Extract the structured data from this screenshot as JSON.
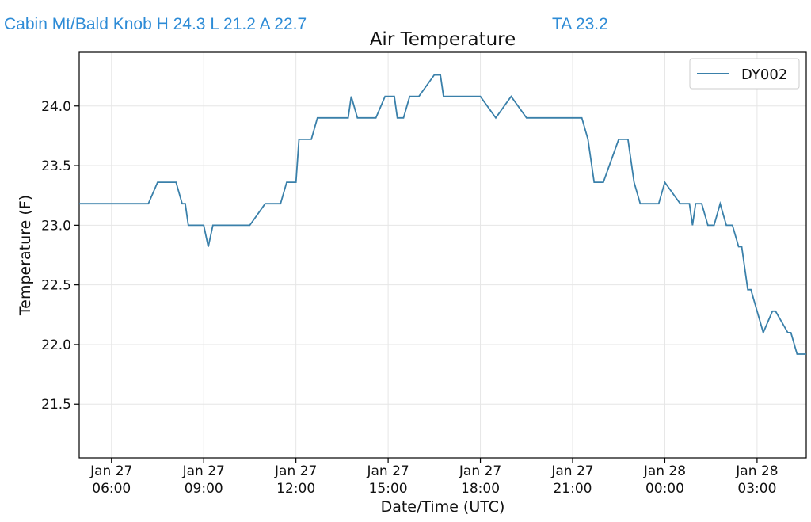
{
  "header": {
    "station_summary": "Cabin Mt/Bald Knob H 24.3 L 21.2 A 22.7",
    "ta_value": "TA 23.2"
  },
  "chart_data": {
    "type": "line",
    "title": "Air Temperature",
    "xlabel": "Date/Time (UTC)",
    "ylabel": "Temperature (F)",
    "xlim_hours": [
      4.95,
      28.6
    ],
    "ylim": [
      21.05,
      24.45
    ],
    "grid": true,
    "legend_position": "top-right",
    "x_ticks": [
      {
        "h": 6,
        "line1": "Jan 27",
        "line2": "06:00"
      },
      {
        "h": 9,
        "line1": "Jan 27",
        "line2": "09:00"
      },
      {
        "h": 12,
        "line1": "Jan 27",
        "line2": "12:00"
      },
      {
        "h": 15,
        "line1": "Jan 27",
        "line2": "15:00"
      },
      {
        "h": 18,
        "line1": "Jan 27",
        "line2": "18:00"
      },
      {
        "h": 21,
        "line1": "Jan 27",
        "line2": "21:00"
      },
      {
        "h": 24,
        "line1": "Jan 28",
        "line2": "00:00"
      },
      {
        "h": 27,
        "line1": "Jan 28",
        "line2": "03:00"
      }
    ],
    "y_ticks": [
      21.5,
      22.0,
      22.5,
      23.0,
      23.5,
      24.0
    ],
    "series": [
      {
        "name": "DY002",
        "color": "#3a80aa",
        "x_hours": [
          4.95,
          5.5,
          6.0,
          6.5,
          7.0,
          7.1,
          7.2,
          7.5,
          8.0,
          8.1,
          8.3,
          8.4,
          8.5,
          9.0,
          9.15,
          9.3,
          9.5,
          10.0,
          10.2,
          10.4,
          10.5,
          11.0,
          11.2,
          11.5,
          11.7,
          12.0,
          12.1,
          12.5,
          12.7,
          13.0,
          13.5,
          13.7,
          13.8,
          14.0,
          14.5,
          14.6,
          14.9,
          15.0,
          15.2,
          15.3,
          15.5,
          15.7,
          16.0,
          16.5,
          16.7,
          16.8,
          17.0,
          17.5,
          18.0,
          18.5,
          19.0,
          19.5,
          19.7,
          19.8,
          20.0,
          20.5,
          20.7,
          21.0,
          21.3,
          21.5,
          21.7,
          21.8,
          22.0,
          22.5,
          22.7,
          22.8,
          23.0,
          23.2,
          23.4,
          23.6,
          23.8,
          24.0,
          24.5,
          24.8,
          24.9,
          25.0,
          25.2,
          25.4,
          25.6,
          25.8,
          26.0,
          26.2,
          26.4,
          26.5,
          26.7,
          26.8,
          27.0,
          27.2,
          27.5,
          27.6,
          28.0,
          28.1,
          28.3,
          28.6
        ],
        "y": [
          23.18,
          23.18,
          23.18,
          23.18,
          23.18,
          23.18,
          23.18,
          23.36,
          23.36,
          23.36,
          23.18,
          23.18,
          23.0,
          23.0,
          22.82,
          23.0,
          23.0,
          23.0,
          23.0,
          23.0,
          23.0,
          23.18,
          23.18,
          23.18,
          23.36,
          23.36,
          23.72,
          23.72,
          23.9,
          23.9,
          23.9,
          23.9,
          24.08,
          23.9,
          23.9,
          23.9,
          24.08,
          24.08,
          24.08,
          23.9,
          23.9,
          24.08,
          24.08,
          24.26,
          24.26,
          24.08,
          24.08,
          24.08,
          24.08,
          23.9,
          24.08,
          23.9,
          23.9,
          23.9,
          23.9,
          23.9,
          23.9,
          23.9,
          23.9,
          23.72,
          23.36,
          23.36,
          23.36,
          23.72,
          23.72,
          23.72,
          23.36,
          23.18,
          23.18,
          23.18,
          23.18,
          23.36,
          23.18,
          23.18,
          23.0,
          23.18,
          23.18,
          23.0,
          23.0,
          23.18,
          23.0,
          23.0,
          22.82,
          22.82,
          22.46,
          22.46,
          22.28,
          22.1,
          22.28,
          22.28,
          22.1,
          22.1,
          21.92,
          21.92
        ]
      }
    ]
  }
}
